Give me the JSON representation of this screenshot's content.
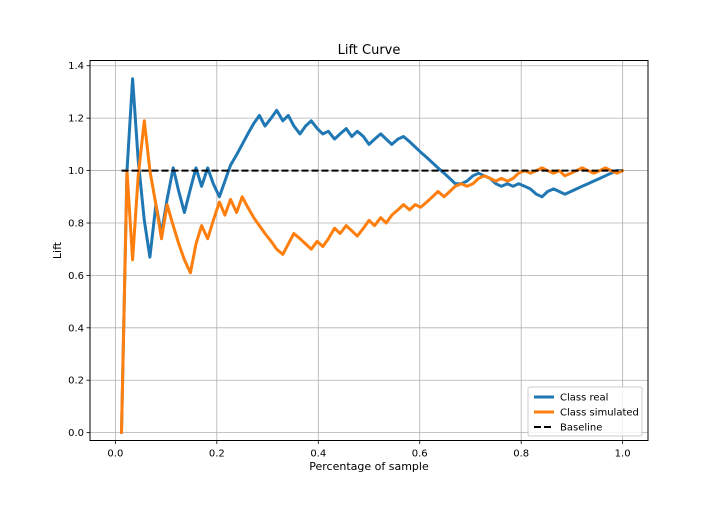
{
  "chart_data": {
    "type": "line",
    "title": "Lift Curve",
    "xlabel": "Percentage of sample",
    "ylabel": "Lift",
    "xlim": [
      -0.05,
      1.05
    ],
    "ylim": [
      -0.03,
      1.42
    ],
    "xticks": [
      0.0,
      0.2,
      0.4,
      0.6,
      0.8,
      1.0
    ],
    "xtick_labels": [
      "0.0",
      "0.2",
      "0.4",
      "0.6",
      "0.8",
      "1.0"
    ],
    "yticks": [
      0.0,
      0.2,
      0.4,
      0.6,
      0.8,
      1.0,
      1.2,
      1.4
    ],
    "ytick_labels": [
      "0.0",
      "0.2",
      "0.4",
      "0.6",
      "0.8",
      "1.0",
      "1.2",
      "1.4"
    ],
    "grid": true,
    "legend_position": "lower-right",
    "series": [
      {
        "name": "Class real",
        "color": "#1f77b4",
        "x": [
          0.012,
          0.023,
          0.034,
          0.045,
          0.057,
          0.068,
          0.08,
          0.091,
          0.102,
          0.114,
          0.125,
          0.136,
          0.148,
          0.159,
          0.17,
          0.182,
          0.193,
          0.205,
          0.216,
          0.227,
          0.239,
          0.25,
          0.261,
          0.273,
          0.284,
          0.295,
          0.307,
          0.318,
          0.33,
          0.341,
          0.352,
          0.364,
          0.375,
          0.386,
          0.398,
          0.409,
          0.42,
          0.432,
          0.443,
          0.455,
          0.466,
          0.477,
          0.489,
          0.5,
          0.511,
          0.523,
          0.534,
          0.545,
          0.557,
          0.568,
          0.58,
          0.591,
          0.602,
          0.614,
          0.625,
          0.636,
          0.648,
          0.659,
          0.67,
          0.682,
          0.693,
          0.705,
          0.716,
          0.727,
          0.739,
          0.75,
          0.761,
          0.773,
          0.784,
          0.795,
          0.807,
          0.818,
          0.83,
          0.841,
          0.852,
          0.864,
          0.875,
          0.886,
          0.898,
          0.909,
          0.92,
          0.932,
          0.943,
          0.955,
          0.966,
          0.977,
          0.989,
          1.0
        ],
        "y": [
          0.0,
          1.0,
          1.35,
          1.04,
          0.81,
          0.67,
          0.87,
          0.76,
          0.89,
          1.01,
          0.92,
          0.84,
          0.93,
          1.01,
          0.94,
          1.01,
          0.95,
          0.9,
          0.96,
          1.02,
          1.06,
          1.1,
          1.14,
          1.18,
          1.21,
          1.17,
          1.2,
          1.23,
          1.19,
          1.21,
          1.17,
          1.14,
          1.17,
          1.19,
          1.16,
          1.14,
          1.15,
          1.12,
          1.14,
          1.16,
          1.13,
          1.15,
          1.13,
          1.1,
          1.12,
          1.14,
          1.12,
          1.1,
          1.12,
          1.13,
          1.11,
          1.09,
          1.07,
          1.05,
          1.03,
          1.01,
          0.99,
          0.97,
          0.95,
          0.95,
          0.96,
          0.98,
          0.99,
          0.98,
          0.97,
          0.95,
          0.94,
          0.95,
          0.94,
          0.95,
          0.94,
          0.93,
          0.91,
          0.9,
          0.92,
          0.93,
          0.92,
          0.91,
          0.92,
          0.93,
          0.94,
          0.95,
          0.96,
          0.97,
          0.98,
          0.99,
          1.0,
          1.0
        ]
      },
      {
        "name": "Class simulated",
        "color": "#ff7f0e",
        "x": [
          0.012,
          0.023,
          0.034,
          0.045,
          0.057,
          0.068,
          0.08,
          0.091,
          0.102,
          0.114,
          0.125,
          0.136,
          0.148,
          0.159,
          0.17,
          0.182,
          0.193,
          0.205,
          0.216,
          0.227,
          0.239,
          0.25,
          0.261,
          0.273,
          0.284,
          0.295,
          0.307,
          0.318,
          0.33,
          0.341,
          0.352,
          0.364,
          0.375,
          0.386,
          0.398,
          0.409,
          0.42,
          0.432,
          0.443,
          0.455,
          0.466,
          0.477,
          0.489,
          0.5,
          0.511,
          0.523,
          0.534,
          0.545,
          0.557,
          0.568,
          0.58,
          0.591,
          0.602,
          0.614,
          0.625,
          0.636,
          0.648,
          0.659,
          0.67,
          0.682,
          0.693,
          0.705,
          0.716,
          0.727,
          0.739,
          0.75,
          0.761,
          0.773,
          0.784,
          0.795,
          0.807,
          0.818,
          0.83,
          0.841,
          0.852,
          0.864,
          0.875,
          0.886,
          0.898,
          0.909,
          0.92,
          0.932,
          0.943,
          0.955,
          0.966,
          0.977,
          0.989,
          1.0
        ],
        "y": [
          0.0,
          1.0,
          0.66,
          0.98,
          1.19,
          1.0,
          0.87,
          0.74,
          0.87,
          0.79,
          0.72,
          0.66,
          0.61,
          0.72,
          0.79,
          0.74,
          0.81,
          0.88,
          0.83,
          0.89,
          0.84,
          0.9,
          0.86,
          0.82,
          0.79,
          0.76,
          0.73,
          0.7,
          0.68,
          0.72,
          0.76,
          0.74,
          0.72,
          0.7,
          0.73,
          0.71,
          0.74,
          0.78,
          0.76,
          0.79,
          0.77,
          0.75,
          0.78,
          0.81,
          0.79,
          0.82,
          0.8,
          0.83,
          0.85,
          0.87,
          0.85,
          0.87,
          0.86,
          0.88,
          0.9,
          0.92,
          0.9,
          0.92,
          0.94,
          0.95,
          0.94,
          0.95,
          0.97,
          0.98,
          0.97,
          0.96,
          0.97,
          0.96,
          0.97,
          0.99,
          1.0,
          0.99,
          1.0,
          1.01,
          1.0,
          0.99,
          1.0,
          0.98,
          0.99,
          1.0,
          1.01,
          1.0,
          0.99,
          1.0,
          1.01,
          1.0,
          0.99,
          1.0
        ]
      },
      {
        "name": "Baseline",
        "color": "#000000",
        "style": "dashed",
        "x": [
          0.012,
          1.0
        ],
        "y": [
          1.0,
          1.0
        ]
      }
    ]
  }
}
